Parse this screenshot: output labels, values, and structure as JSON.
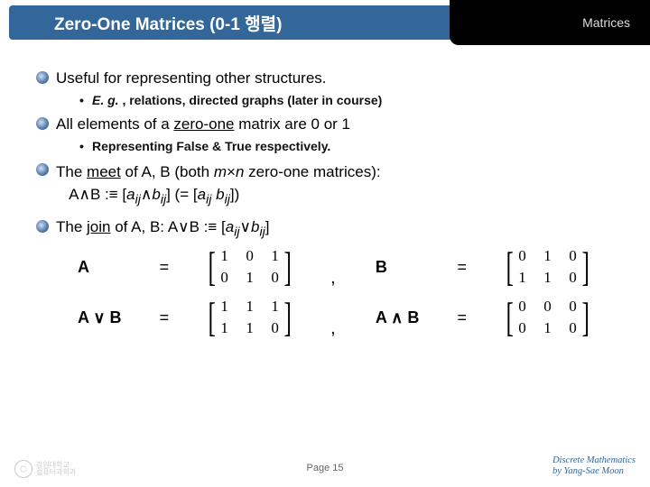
{
  "header": {
    "title": "Zero-One Matrices (0-1 행렬)",
    "section": "Matrices"
  },
  "points": {
    "p1": "Useful for representing other structures.",
    "p1a_pre": "E. g. ",
    "p1a": ", relations, directed graphs (later in course)",
    "p2_pre": "All elements of a ",
    "p2_u": "zero-one",
    "p2_post": " matrix are 0 or 1",
    "p2a_pre": "Representing ",
    "p2a_b1": "False",
    "p2a_mid": " & ",
    "p2a_b2": "True",
    "p2a_post": " respectively.",
    "p3_pre": "The ",
    "p3_u": "meet",
    "p3_mid1": " of A, B (both ",
    "p3_i1": "m",
    "p3_x": "×",
    "p3_i2": "n",
    "p3_mid2": " zero-one matrices):",
    "p3_line2_a": "A",
    "p3_line2_meet": "∧",
    "p3_line2_b": "B :≡ [",
    "p3_line2_aij": "a",
    "p3_line2_ij1": "ij",
    "p3_line2_and": "∧",
    "p3_line2_bij": "b",
    "p3_line2_ij2": "ij",
    "p3_line2_c": "] (= [",
    "p3_line2_aij2": "a",
    "p3_line2_ij3": "ij",
    "p3_line2_sp": " ",
    "p3_line2_bij2": "b",
    "p3_line2_ij4": "ij",
    "p3_line2_d": "])",
    "p4_pre": "The ",
    "p4_u": "join",
    "p4_mid": " of A, B: A",
    "p4_or": "∨",
    "p4_b": "B :≡ [",
    "p4_aij": "a",
    "p4_ij1": "ij",
    "p4_or2": "∨",
    "p4_bij": "b",
    "p4_ij2": "ij",
    "p4_end": "]"
  },
  "m": {
    "A_label": "A",
    "B_label": "B",
    "AorB_label": "A ∨ B",
    "AandB_label": "A ∧ B",
    "eq": "=",
    "comma": ",",
    "A": [
      [
        "1",
        "0",
        "1"
      ],
      [
        "0",
        "1",
        "0"
      ]
    ],
    "B": [
      [
        "0",
        "1",
        "0"
      ],
      [
        "1",
        "1",
        "0"
      ]
    ],
    "AorB": [
      [
        "1",
        "1",
        "1"
      ],
      [
        "1",
        "1",
        "0"
      ]
    ],
    "AandB": [
      [
        "0",
        "0",
        "0"
      ],
      [
        "0",
        "1",
        "0"
      ]
    ]
  },
  "footer": {
    "page": "Page 15",
    "credit1": "Discrete Mathematics",
    "credit2": "by Yang-Sae Moon",
    "uni1": "강원대학교",
    "uni2": "컴퓨터과학과"
  }
}
